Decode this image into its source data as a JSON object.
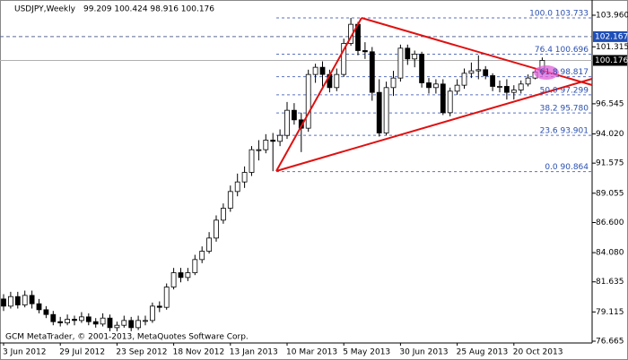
{
  "chart_data": {
    "type": "candlestick",
    "title": "USDJPY,Weekly",
    "ohlc_text": "99.209 100.424 98.916 100.176",
    "footer": "GCM MetaTrader, © 2001-2013, MetaQuotes Software Corp.",
    "categories": [
      "3 Jun 2012",
      null,
      null,
      null,
      null,
      null,
      null,
      null,
      "29 Jul 2012",
      null,
      null,
      null,
      null,
      null,
      null,
      null,
      "23 Sep 2012",
      null,
      null,
      null,
      null,
      null,
      null,
      null,
      "18 Nov 2012",
      null,
      null,
      null,
      null,
      null,
      null,
      null,
      "13 Jan 2013",
      null,
      null,
      null,
      null,
      null,
      null,
      null,
      "10 Mar 2013",
      null,
      null,
      null,
      null,
      null,
      null,
      null,
      "5 May 2013",
      null,
      null,
      null,
      null,
      null,
      null,
      null,
      "30 Jun 2013",
      null,
      null,
      null,
      null,
      null,
      null,
      null,
      "25 Aug 2013",
      null,
      null,
      null,
      null,
      null,
      null,
      null,
      "20 Oct 2013",
      null,
      null,
      null,
      null
    ],
    "open": [
      80.2,
      79.6,
      80.4,
      79.7,
      80.5,
      79.8,
      79.3,
      78.9,
      78.3,
      78.2,
      78.5,
      78.4,
      78.7,
      78.3,
      78.1,
      78.6,
      77.8,
      78.0,
      78.4,
      77.8,
      78.4,
      78.4,
      79.6,
      79.5,
      81.2,
      82.4,
      82.0,
      82.4,
      83.5,
      84.2,
      85.3,
      86.8,
      87.8,
      89.2,
      90.0,
      90.8,
      92.7,
      92.7,
      93.5,
      93.4,
      93.9,
      96.0,
      95.2,
      94.5,
      99.0,
      99.6,
      99.0,
      97.9,
      99.0,
      101.6,
      103.2,
      101.0,
      100.9,
      97.5,
      94.1,
      97.9,
      98.7,
      101.2,
      100.3,
      100.7,
      98.3,
      97.9,
      98.2,
      95.8,
      97.6,
      98.1,
      99.1,
      99.3,
      99.4,
      98.9,
      98.0,
      98.0,
      97.5,
      97.7,
      98.2,
      98.7,
      99.209
    ],
    "high": [
      80.6,
      80.8,
      80.8,
      80.9,
      80.9,
      80.2,
      79.6,
      79.2,
      78.7,
      78.9,
      78.8,
      79.1,
      79.0,
      78.6,
      79.0,
      78.9,
      78.3,
      78.8,
      78.7,
      78.8,
      78.8,
      79.9,
      80.0,
      81.5,
      82.8,
      82.8,
      82.8,
      83.9,
      84.6,
      85.8,
      87.2,
      88.2,
      89.7,
      90.7,
      91.3,
      93.0,
      93.5,
      94.0,
      94.1,
      94.4,
      96.7,
      96.6,
      95.8,
      99.4,
      99.9,
      100.1,
      99.4,
      99.5,
      102.0,
      103.733,
      103.4,
      101.7,
      101.3,
      98.6,
      98.4,
      99.3,
      101.5,
      101.5,
      101.0,
      100.9,
      98.7,
      98.6,
      98.6,
      97.9,
      98.6,
      99.5,
      100.0,
      100.6,
      99.7,
      99.1,
      98.5,
      98.6,
      98.1,
      98.5,
      99.0,
      99.4,
      100.424
    ],
    "low": [
      79.2,
      79.4,
      79.4,
      79.5,
      79.4,
      79.0,
      78.6,
      78.0,
      77.9,
      78.0,
      78.0,
      78.2,
      78.0,
      77.8,
      77.9,
      77.5,
      77.5,
      77.8,
      77.5,
      77.6,
      78.0,
      78.2,
      79.1,
      79.3,
      81.0,
      81.6,
      81.7,
      82.2,
      83.2,
      84.0,
      85.0,
      86.5,
      87.5,
      88.8,
      89.5,
      90.5,
      91.8,
      92.4,
      90.9,
      93.0,
      93.6,
      94.8,
      92.5,
      94.2,
      98.3,
      98.0,
      97.5,
      97.6,
      98.8,
      101.4,
      100.6,
      100.3,
      96.8,
      93.8,
      93.9,
      97.2,
      98.4,
      99.8,
      99.6,
      97.9,
      97.4,
      97.4,
      95.6,
      95.5,
      97.3,
      97.8,
      98.7,
      98.6,
      98.6,
      97.6,
      97.5,
      96.9,
      96.9,
      97.4,
      98.0,
      98.6,
      98.916
    ],
    "close": [
      79.6,
      80.4,
      79.7,
      80.5,
      79.8,
      79.3,
      78.9,
      78.3,
      78.2,
      78.5,
      78.4,
      78.7,
      78.3,
      78.1,
      78.6,
      77.8,
      78.0,
      78.4,
      77.8,
      78.4,
      78.4,
      79.6,
      79.5,
      81.2,
      82.4,
      82.0,
      82.4,
      83.5,
      84.2,
      85.3,
      86.8,
      87.8,
      89.2,
      90.0,
      90.8,
      92.7,
      92.7,
      93.5,
      93.4,
      93.9,
      96.0,
      95.2,
      94.5,
      99.0,
      99.6,
      99.0,
      97.9,
      99.0,
      101.6,
      103.2,
      101.0,
      100.9,
      97.5,
      94.1,
      97.9,
      98.7,
      101.2,
      100.3,
      100.7,
      98.3,
      97.9,
      98.2,
      95.8,
      97.6,
      98.1,
      99.1,
      99.3,
      99.4,
      98.9,
      98.0,
      98.0,
      97.5,
      97.7,
      98.2,
      98.7,
      99.2,
      100.176
    ],
    "ylim": [
      76.515,
      104.86
    ],
    "yticks": [
      76.665,
      79.115,
      81.635,
      {
        "value": 84.08,
        "label": "84.080"
      },
      {
        "value": 86.6,
        "label": "86.600"
      },
      89.055,
      91.575,
      {
        "value": 94.02,
        "label": "94.020"
      },
      96.545,
      101.315,
      {
        "value": 103.96,
        "label": "103.960"
      }
    ],
    "fib_levels": [
      {
        "value": 103.733,
        "label": "100.0 103.733"
      },
      {
        "value": 100.696,
        "label": "76.4 100.696"
      },
      {
        "value": 98.817,
        "label": "61.8 98.817"
      },
      {
        "value": 97.299,
        "label": "50.0 97.299"
      },
      {
        "value": 95.78,
        "label": "38.2 95.780"
      },
      {
        "value": 93.901,
        "label": "23.6 93.901"
      },
      {
        "value": 90.864,
        "label": "0.0 90.864"
      }
    ],
    "marked_levels": [
      {
        "value": 102.167,
        "box_color": "#1f4fb8",
        "line": "dashed"
      },
      {
        "value": 100.176,
        "box_color": "#000000",
        "line": "solid"
      }
    ],
    "bull_color": "#ffffff",
    "bear_color": "#000000",
    "fib_color": "#5a72c0"
  }
}
